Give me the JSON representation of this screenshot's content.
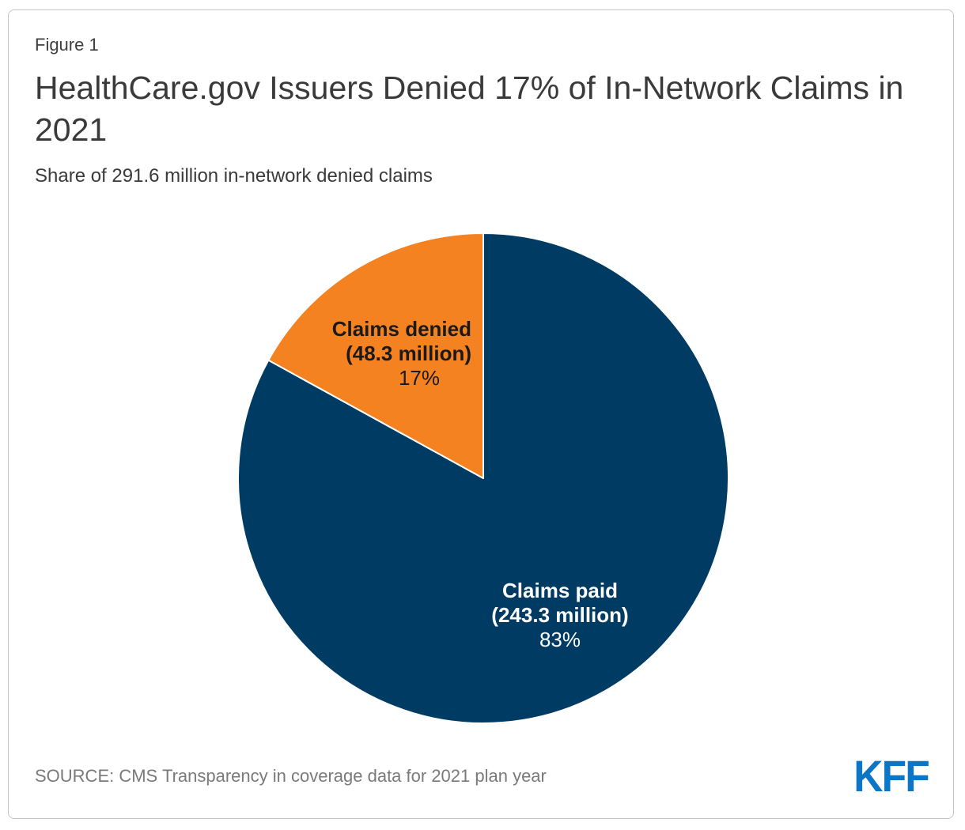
{
  "figure": {
    "label": "Figure 1",
    "title": "HealthCare.gov Issuers Denied 17% of In-Network Claims in 2021",
    "subtitle": "Share of 291.6 million in-network denied claims",
    "source": "SOURCE: CMS Transparency in coverage data for 2021 plan year",
    "logo": "KFF"
  },
  "colors": {
    "claims_paid": "#003B64",
    "claims_denied": "#F58220",
    "slice_divider": "#FFFFFF",
    "logo_blue": "#0B76C5",
    "heading_text": "#3A3A3A",
    "source_text": "#7A7A7A",
    "card_border": "#C6C6C6"
  },
  "chart_data": {
    "type": "pie",
    "title": "HealthCare.gov Issuers Denied 17% of In-Network Claims in 2021",
    "subtitle": "Share of 291.6 million in-network denied claims",
    "total_millions": 291.6,
    "start_angle_deg": 0,
    "direction": "clockwise",
    "legend_position": "labels-on-slices",
    "slices": [
      {
        "name": "Claims paid",
        "count_label": "(243.3 million)",
        "percent_label": "83%",
        "value_millions": 243.3,
        "percent": 83,
        "color": "#003B64",
        "label_color": "#FFFFFF"
      },
      {
        "name": "Claims denied",
        "count_label": "(48.3 million)",
        "percent_label": "17%",
        "value_millions": 48.3,
        "percent": 17,
        "color": "#F58220",
        "label_color": "#1A1A1A"
      }
    ]
  }
}
